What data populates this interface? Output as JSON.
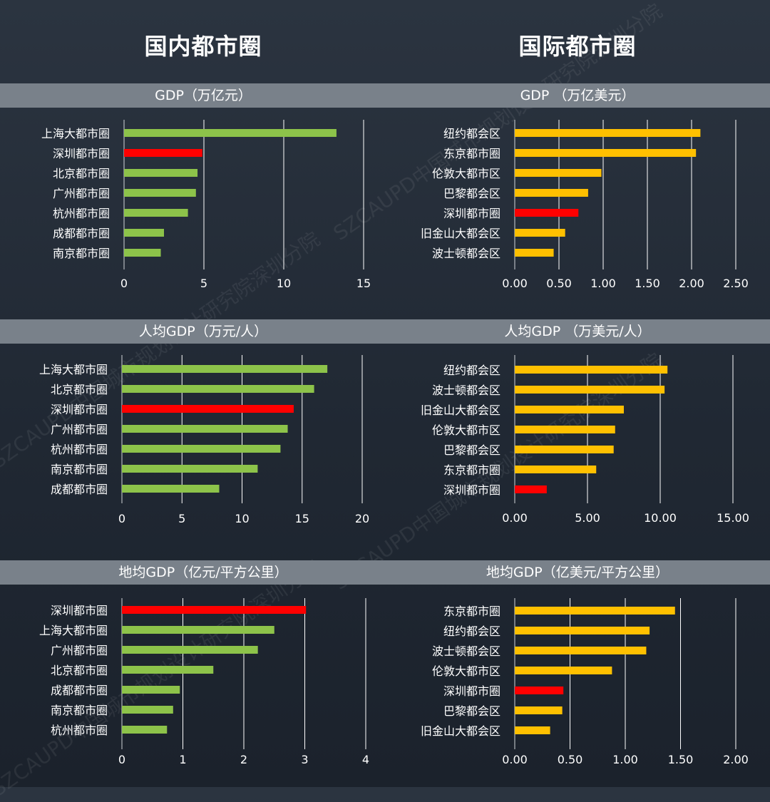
{
  "titles": {
    "domestic": "国内都市圈",
    "international": "国际都市圈"
  },
  "watermark": "SZCAUPD中国城市规划设计研究院深圳分院",
  "colors": {
    "domestic": "#8dc34a",
    "international": "#ffc000",
    "highlight": "#ff0000",
    "band": "#79818a"
  },
  "chart_data": [
    {
      "id": "dom-gdp",
      "type": "bar",
      "orientation": "horizontal",
      "title": "GDP（万亿元）",
      "categories": [
        "上海大都市圈",
        "深圳都市圈",
        "北京都市圈",
        "广州都市圈",
        "杭州都市圈",
        "成都都市圈",
        "南京都市圈"
      ],
      "values": [
        13.3,
        4.9,
        4.6,
        4.5,
        4.0,
        2.5,
        2.3
      ],
      "highlight": "深圳都市圈",
      "xlim": [
        0,
        15
      ],
      "ticks": [
        0,
        5,
        10,
        15
      ],
      "tick_labels": [
        "0",
        "5",
        "10",
        "15"
      ]
    },
    {
      "id": "int-gdp",
      "type": "bar",
      "orientation": "horizontal",
      "title": "GDP （万亿美元）",
      "categories": [
        "纽约都会区",
        "东京都市圈",
        "伦敦大都市区",
        "巴黎都会区",
        "深圳都市圈",
        "旧金山大都会区",
        "波士顿都会区"
      ],
      "values": [
        2.1,
        2.05,
        0.98,
        0.83,
        0.72,
        0.57,
        0.44
      ],
      "highlight": "深圳都市圈",
      "xlim": [
        0,
        2.5
      ],
      "ticks": [
        0,
        0.5,
        1.0,
        1.5,
        2.0,
        2.5
      ],
      "tick_labels": [
        "0.00",
        "0.50",
        "1.00",
        "1.50",
        "2.00",
        "2.50"
      ]
    },
    {
      "id": "dom-pc",
      "type": "bar",
      "orientation": "horizontal",
      "title": "人均GDP（万元/人）",
      "categories": [
        "上海大都市圈",
        "北京都市圈",
        "深圳都市圈",
        "广州都市圈",
        "杭州都市圈",
        "南京都市圈",
        "成都都市圈"
      ],
      "values": [
        17.1,
        16.0,
        14.3,
        13.8,
        13.2,
        11.3,
        8.1
      ],
      "highlight": "深圳都市圈",
      "xlim": [
        0,
        20
      ],
      "ticks": [
        0,
        5,
        10,
        15,
        20
      ],
      "tick_labels": [
        "0",
        "5",
        "10",
        "15",
        "20"
      ]
    },
    {
      "id": "int-pc",
      "type": "bar",
      "orientation": "horizontal",
      "title": "人均GDP （万美元/人）",
      "categories": [
        "纽约都会区",
        "波士顿都会区",
        "旧金山大都会区",
        "伦敦大都市区",
        "巴黎都会区",
        "东京都市圈",
        "深圳都市圈"
      ],
      "values": [
        10.5,
        10.3,
        7.5,
        6.9,
        6.8,
        5.6,
        2.2
      ],
      "highlight": "深圳都市圈",
      "xlim": [
        0,
        15
      ],
      "ticks": [
        0,
        5,
        10,
        15
      ],
      "tick_labels": [
        "0.00",
        "5.00",
        "10.00",
        "15.00"
      ]
    },
    {
      "id": "dom-area",
      "type": "bar",
      "orientation": "horizontal",
      "title": "地均GDP（亿元/平方公里）",
      "categories": [
        "深圳都市圈",
        "上海大都市圈",
        "广州都市圈",
        "北京都市圈",
        "成都都市圈",
        "南京都市圈",
        "杭州都市圈"
      ],
      "values": [
        3.02,
        2.5,
        2.23,
        1.5,
        0.95,
        0.84,
        0.74
      ],
      "highlight": "深圳都市圈",
      "xlim": [
        0,
        4
      ],
      "ticks": [
        0,
        1,
        2,
        3,
        4
      ],
      "tick_labels": [
        "0",
        "1",
        "2",
        "3",
        "4"
      ]
    },
    {
      "id": "int-area",
      "type": "bar",
      "orientation": "horizontal",
      "title": "地均GDP（亿美元/平方公里）",
      "categories": [
        "东京都市圈",
        "纽约都会区",
        "波士顿都会区",
        "伦敦大都市区",
        "深圳都市圈",
        "巴黎都会区",
        "旧金山大都会区"
      ],
      "values": [
        1.45,
        1.22,
        1.19,
        0.88,
        0.44,
        0.43,
        0.32
      ],
      "highlight": "深圳都市圈",
      "xlim": [
        0,
        2.0
      ],
      "ticks": [
        0,
        0.5,
        1.0,
        1.5,
        2.0
      ],
      "tick_labels": [
        "0.00",
        "0.50",
        "1.00",
        "1.50",
        "2.00"
      ]
    }
  ]
}
